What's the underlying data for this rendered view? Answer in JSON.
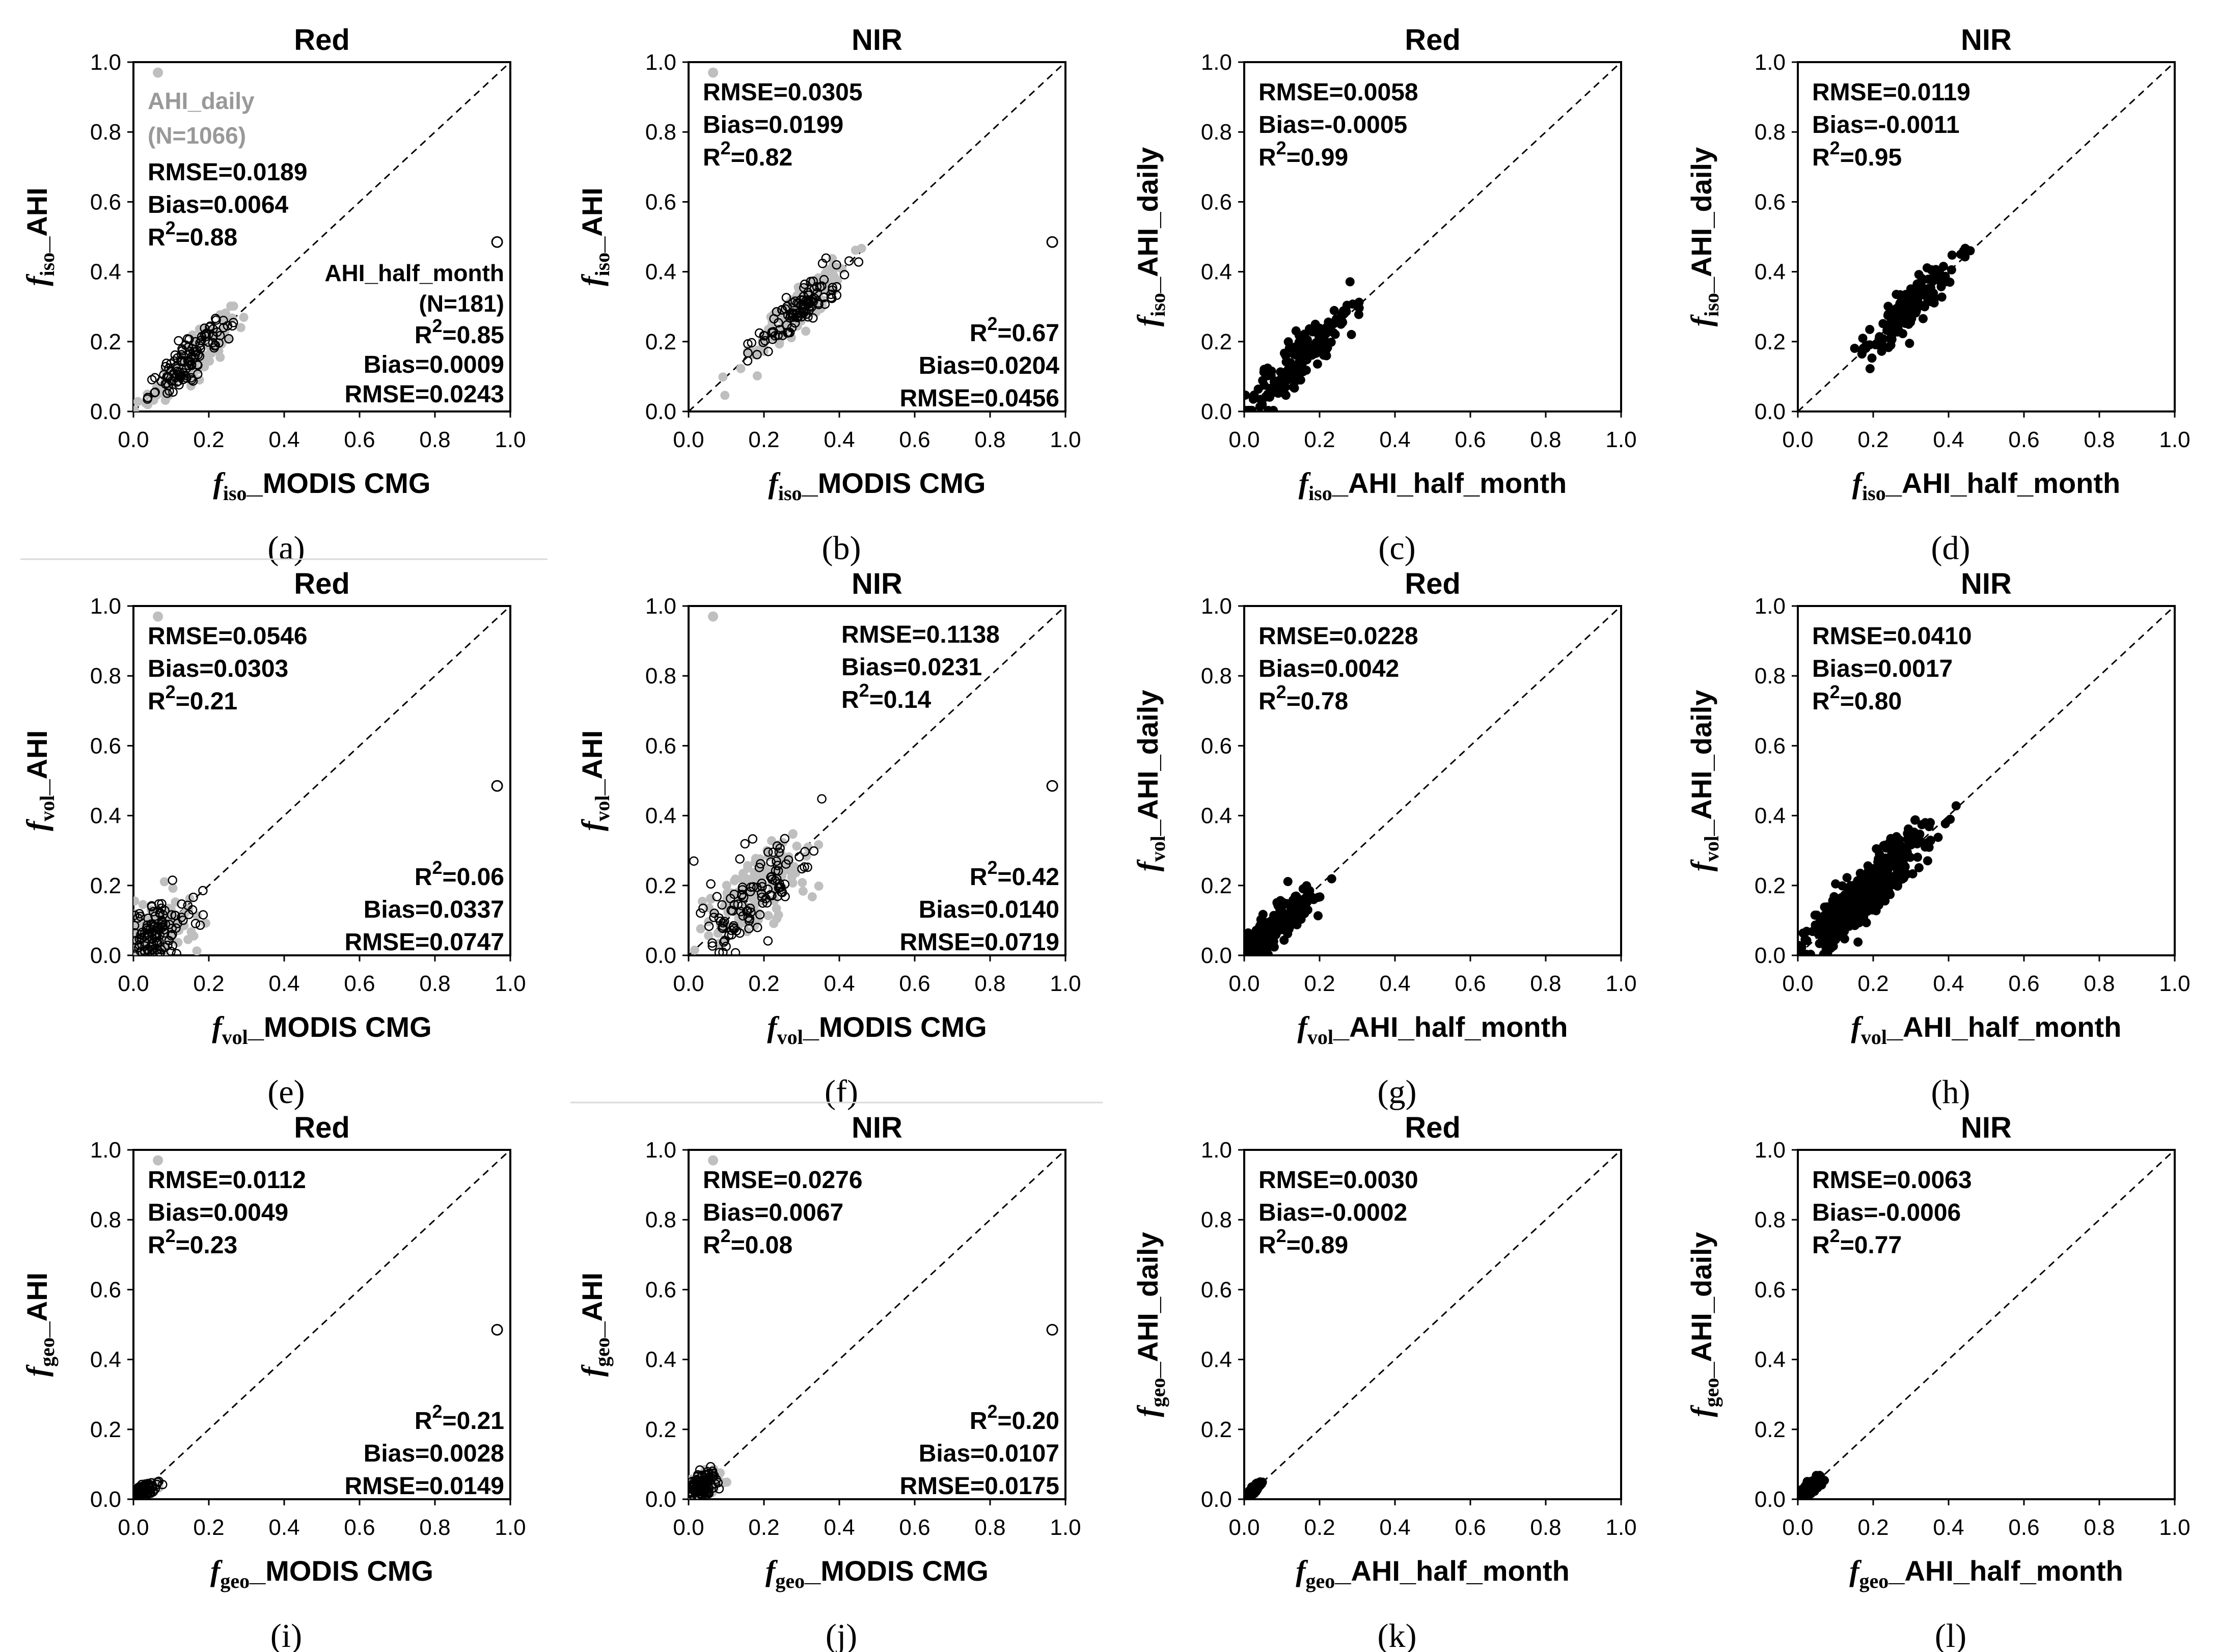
{
  "figure": {
    "legend": {
      "daily_label": "AHI_daily",
      "daily_n": "(N=1066)",
      "half_label": "AHI_half_month",
      "half_n": "(N=181)"
    },
    "colors": {
      "daily": "#bfbfbf",
      "half_month": "#000000",
      "axis": "#000000"
    }
  },
  "chart_data": [
    {
      "type": "scatter",
      "id": "a",
      "panel_label": "(a)",
      "title": "Red",
      "ylabel_sym": "f",
      "ylabel_sub": "iso",
      "ylabel_text": "_AHI",
      "xlabel_sym": "f",
      "xlabel_sub": "iso",
      "xlabel_text": "_MODIS CMG",
      "xlim": [
        0,
        1
      ],
      "ylim": [
        0,
        1
      ],
      "xticks": [
        "0.0",
        "0.2",
        "0.4",
        "0.6",
        "0.8",
        "1.0"
      ],
      "yticks": [
        "0.0",
        "0.2",
        "0.4",
        "0.6",
        "0.8",
        "1.0"
      ],
      "show_legend": true,
      "stats_top": [
        "RMSE=0.0189",
        "Bias=0.0064",
        "R2=0.88"
      ],
      "stats_bottom": [
        "R2=0.85",
        "Bias=0.0009",
        "RMSE=0.0243"
      ],
      "cluster": {
        "mx": 0.15,
        "my": 0.15,
        "sx": 0.055,
        "sy": 0.055,
        "slope": 1.0
      }
    },
    {
      "type": "scatter",
      "id": "b",
      "panel_label": "(b)",
      "title": "NIR",
      "ylabel_sym": "f",
      "ylabel_sub": "iso",
      "ylabel_text": "_AHI",
      "xlabel_sym": "f",
      "xlabel_sub": "iso",
      "xlabel_text": "_MODIS CMG",
      "xlim": [
        0,
        1
      ],
      "ylim": [
        0,
        1
      ],
      "xticks": [
        "0.0",
        "0.2",
        "0.4",
        "0.6",
        "0.8",
        "1.0"
      ],
      "yticks": [
        "0.0",
        "0.2",
        "0.4",
        "0.6",
        "0.8",
        "1.0"
      ],
      "show_legend": false,
      "stats_top": [
        "RMSE=0.0305",
        "Bias=0.0199",
        "R2=0.82"
      ],
      "stats_bottom": [
        "R2=0.67",
        "Bias=0.0204",
        "RMSE=0.0456"
      ],
      "cluster": {
        "mx": 0.29,
        "my": 0.29,
        "sx": 0.06,
        "sy": 0.06,
        "slope": 0.9
      }
    },
    {
      "type": "scatter",
      "id": "c",
      "panel_label": "(c)",
      "title": "Red",
      "ylabel_sym": "f",
      "ylabel_sub": "iso",
      "ylabel_text": "_AHI_daily",
      "xlabel_sym": "f",
      "xlabel_sub": "iso",
      "xlabel_text": "_AHI_half_month",
      "xlim": [
        0,
        1
      ],
      "ylim": [
        0,
        1
      ],
      "xticks": [
        "0.0",
        "0.2",
        "0.4",
        "0.6",
        "0.8",
        "1.0"
      ],
      "yticks": [
        "0.0",
        "0.2",
        "0.4",
        "0.6",
        "0.8",
        "1.0"
      ],
      "show_legend": false,
      "stats_top": [
        "RMSE=0.0058",
        "Bias=-0.0005",
        "R2=0.99"
      ],
      "cluster": {
        "mx": 0.15,
        "my": 0.15,
        "sx": 0.07,
        "sy": 0.07,
        "slope": 1.0
      }
    },
    {
      "type": "scatter",
      "id": "d",
      "panel_label": "(d)",
      "title": "NIR",
      "ylabel_sym": "f",
      "ylabel_sub": "iso",
      "ylabel_text": "_AHI_daily",
      "xlabel_sym": "f",
      "xlabel_sub": "iso",
      "xlabel_text": "_AHI_half_month",
      "xlim": [
        0,
        1
      ],
      "ylim": [
        0,
        1
      ],
      "xticks": [
        "0.0",
        "0.2",
        "0.4",
        "0.6",
        "0.8",
        "1.0"
      ],
      "yticks": [
        "0.0",
        "0.2",
        "0.4",
        "0.6",
        "0.8",
        "1.0"
      ],
      "show_legend": false,
      "stats_top": [
        "RMSE=0.0119",
        "Bias=-0.0011",
        "R2=0.95"
      ],
      "cluster": {
        "mx": 0.29,
        "my": 0.29,
        "sx": 0.06,
        "sy": 0.06,
        "slope": 1.0
      }
    },
    {
      "type": "scatter",
      "id": "e",
      "panel_label": "(e)",
      "title": "Red",
      "ylabel_sym": "f",
      "ylabel_sub": "vol",
      "ylabel_text": "_AHI",
      "xlabel_sym": "f",
      "xlabel_sub": "vol",
      "xlabel_text": "_MODIS CMG",
      "xlim": [
        0,
        1
      ],
      "ylim": [
        0,
        1
      ],
      "xticks": [
        "0.0",
        "0.2",
        "0.4",
        "0.6",
        "0.8",
        "1.0"
      ],
      "yticks": [
        "0.0",
        "0.2",
        "0.4",
        "0.6",
        "0.8",
        "1.0"
      ],
      "show_legend": false,
      "stats_top": [
        "RMSE=0.0546",
        "Bias=0.0303",
        "R2=0.21"
      ],
      "stats_bottom": [
        "R2=0.06",
        "Bias=0.0337",
        "RMSE=0.0747"
      ],
      "cluster": {
        "mx": 0.06,
        "my": 0.07,
        "sx": 0.045,
        "sy": 0.05,
        "slope": 0.3
      }
    },
    {
      "type": "scatter",
      "id": "f",
      "panel_label": "(f)",
      "title": "NIR",
      "ylabel_sym": "f",
      "ylabel_sub": "vol",
      "ylabel_text": "_AHI",
      "xlabel_sym": "f",
      "xlabel_sub": "vol",
      "xlabel_text": "_MODIS CMG",
      "xlim": [
        0,
        1
      ],
      "ylim": [
        0,
        1
      ],
      "xticks": [
        "0.0",
        "0.2",
        "0.4",
        "0.6",
        "0.8",
        "1.0"
      ],
      "yticks": [
        "0.0",
        "0.2",
        "0.4",
        "0.6",
        "0.8",
        "1.0"
      ],
      "show_legend": false,
      "stats_top": [
        "RMSE=0.1138",
        "Bias=0.0231",
        "R2=0.14"
      ],
      "stats_bottom": [
        "R2=0.42",
        "Bias=0.0140",
        "RMSE=0.0719"
      ],
      "cluster": {
        "mx": 0.17,
        "my": 0.18,
        "sx": 0.07,
        "sy": 0.09,
        "slope": 0.7
      }
    },
    {
      "type": "scatter",
      "id": "g",
      "panel_label": "(g)",
      "title": "Red",
      "ylabel_sym": "f",
      "ylabel_sub": "vol",
      "ylabel_text": "_AHI_daily",
      "xlabel_sym": "f",
      "xlabel_sub": "vol",
      "xlabel_text": "_AHI_half_month",
      "xlim": [
        0,
        1
      ],
      "ylim": [
        0,
        1
      ],
      "xticks": [
        "0.0",
        "0.2",
        "0.4",
        "0.6",
        "0.8",
        "1.0"
      ],
      "yticks": [
        "0.0",
        "0.2",
        "0.4",
        "0.6",
        "0.8",
        "1.0"
      ],
      "show_legend": false,
      "stats_top": [
        "RMSE=0.0228",
        "Bias=0.0042",
        "R2=0.78"
      ],
      "cluster": {
        "mx": 0.07,
        "my": 0.07,
        "sx": 0.05,
        "sy": 0.05,
        "slope": 0.9
      }
    },
    {
      "type": "scatter",
      "id": "h",
      "panel_label": "(h)",
      "title": "NIR",
      "ylabel_sym": "f",
      "ylabel_sub": "vol",
      "ylabel_text": "_AHI_daily",
      "xlabel_sym": "f",
      "xlabel_sub": "vol",
      "xlabel_text": "_AHI_half_month",
      "xlim": [
        0,
        1
      ],
      "ylim": [
        0,
        1
      ],
      "xticks": [
        "0.0",
        "0.2",
        "0.4",
        "0.6",
        "0.8",
        "1.0"
      ],
      "yticks": [
        "0.0",
        "0.2",
        "0.4",
        "0.6",
        "0.8",
        "1.0"
      ],
      "show_legend": false,
      "stats_top": [
        "RMSE=0.0410",
        "Bias=0.0017",
        "R2=0.80"
      ],
      "cluster": {
        "mx": 0.19,
        "my": 0.19,
        "sx": 0.08,
        "sy": 0.08,
        "slope": 0.95
      }
    },
    {
      "type": "scatter",
      "id": "i",
      "panel_label": "(i)",
      "title": "Red",
      "ylabel_sym": "f",
      "ylabel_sub": "geo",
      "ylabel_text": "_AHI",
      "xlabel_sym": "f",
      "xlabel_sub": "geo",
      "xlabel_text": "_MODIS CMG",
      "xlim": [
        0,
        1
      ],
      "ylim": [
        0,
        1
      ],
      "xticks": [
        "0.0",
        "0.2",
        "0.4",
        "0.6",
        "0.8",
        "1.0"
      ],
      "yticks": [
        "0.0",
        "0.2",
        "0.4",
        "0.6",
        "0.8",
        "1.0"
      ],
      "show_legend": false,
      "stats_top": [
        "RMSE=0.0112",
        "Bias=0.0049",
        "R2=0.23"
      ],
      "stats_bottom": [
        "R2=0.21",
        "Bias=0.0028",
        "RMSE=0.0149"
      ],
      "cluster": {
        "mx": 0.025,
        "my": 0.025,
        "sx": 0.015,
        "sy": 0.012,
        "slope": 0.4
      }
    },
    {
      "type": "scatter",
      "id": "j",
      "panel_label": "(j)",
      "title": "NIR",
      "ylabel_sym": "f",
      "ylabel_sub": "geo",
      "ylabel_text": "_AHI",
      "xlabel_sym": "f",
      "xlabel_sub": "geo",
      "xlabel_text": "_MODIS CMG",
      "xlim": [
        0,
        1
      ],
      "ylim": [
        0,
        1
      ],
      "xticks": [
        "0.0",
        "0.2",
        "0.4",
        "0.6",
        "0.8",
        "1.0"
      ],
      "yticks": [
        "0.0",
        "0.2",
        "0.4",
        "0.6",
        "0.8",
        "1.0"
      ],
      "show_legend": false,
      "stats_top": [
        "RMSE=0.0276",
        "Bias=0.0067",
        "R2=0.08"
      ],
      "stats_bottom": [
        "R2=0.20",
        "Bias=0.0107",
        "RMSE=0.0175"
      ],
      "cluster": {
        "mx": 0.035,
        "my": 0.035,
        "sx": 0.02,
        "sy": 0.022,
        "slope": 0.4
      }
    },
    {
      "type": "scatter",
      "id": "k",
      "panel_label": "(k)",
      "title": "Red",
      "ylabel_sym": "f",
      "ylabel_sub": "geo",
      "ylabel_text": "_AHI_daily",
      "xlabel_sym": "f",
      "xlabel_sub": "geo",
      "xlabel_text": "_AHI_half_month",
      "xlim": [
        0,
        1
      ],
      "ylim": [
        0,
        1
      ],
      "xticks": [
        "0.0",
        "0.2",
        "0.4",
        "0.6",
        "0.8",
        "1.0"
      ],
      "yticks": [
        "0.0",
        "0.2",
        "0.4",
        "0.6",
        "0.8",
        "1.0"
      ],
      "show_legend": false,
      "stats_top": [
        "RMSE=0.0030",
        "Bias=-0.0002",
        "R2=0.89"
      ],
      "cluster": {
        "mx": 0.02,
        "my": 0.02,
        "sx": 0.01,
        "sy": 0.01,
        "slope": 1.0
      }
    },
    {
      "type": "scatter",
      "id": "l",
      "panel_label": "(l)",
      "title": "NIR",
      "ylabel_sym": "f",
      "ylabel_sub": "geo",
      "ylabel_text": "_AHI_daily",
      "xlabel_sym": "f",
      "xlabel_sub": "geo",
      "xlabel_text": "_AHI_half_month",
      "xlim": [
        0,
        1
      ],
      "ylim": [
        0,
        1
      ],
      "xticks": [
        "0.0",
        "0.2",
        "0.4",
        "0.6",
        "0.8",
        "1.0"
      ],
      "yticks": [
        "0.0",
        "0.2",
        "0.4",
        "0.6",
        "0.8",
        "1.0"
      ],
      "show_legend": false,
      "stats_top": [
        "RMSE=0.0063",
        "Bias=-0.0006",
        "R2=0.77"
      ],
      "cluster": {
        "mx": 0.03,
        "my": 0.03,
        "sx": 0.018,
        "sy": 0.018,
        "slope": 0.9
      }
    }
  ]
}
